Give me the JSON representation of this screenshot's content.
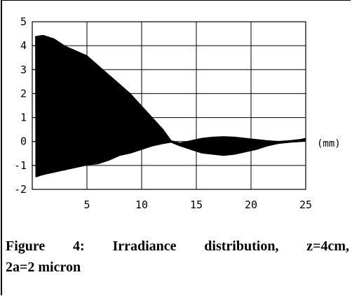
{
  "chart_data": {
    "type": "area",
    "title": "",
    "xlabel": "(mm)",
    "ylabel": "",
    "xlim": [
      0,
      25
    ],
    "ylim": [
      -2,
      5
    ],
    "x_ticks": [
      5,
      10,
      15,
      20,
      25
    ],
    "y_ticks": [
      -2,
      -1,
      0,
      1,
      2,
      3,
      4,
      5
    ],
    "grid": true,
    "fill_color": "#000000",
    "series": [
      {
        "x": [
          0.3,
          1,
          2,
          3,
          4,
          5,
          6,
          7,
          8,
          9,
          10,
          11,
          12,
          12.7,
          13.5,
          14.5,
          15.5,
          16.5,
          17.5,
          18.5,
          19.5,
          20.5,
          21.5,
          22.5,
          23.5,
          24.5,
          25
        ],
        "upper": [
          4.4,
          4.45,
          4.3,
          4.0,
          3.8,
          3.6,
          3.2,
          2.8,
          2.4,
          2.0,
          1.5,
          1.0,
          0.5,
          0.05,
          -0.05,
          0.05,
          0.15,
          0.2,
          0.22,
          0.2,
          0.15,
          0.1,
          0.05,
          0.02,
          0.05,
          0.1,
          0.15
        ],
        "lower": [
          -1.5,
          -1.4,
          -1.3,
          -1.2,
          -1.1,
          -1.0,
          -0.95,
          -0.8,
          -0.6,
          -0.5,
          -0.35,
          -0.2,
          -0.1,
          -0.05,
          -0.2,
          -0.35,
          -0.5,
          -0.55,
          -0.6,
          -0.55,
          -0.45,
          -0.35,
          -0.2,
          -0.1,
          -0.05,
          -0.02,
          0.0
        ]
      }
    ]
  },
  "caption": {
    "line1": "Figure 4: Irradiance distribution, z=4cm,",
    "line2": "2a=2 micron"
  }
}
